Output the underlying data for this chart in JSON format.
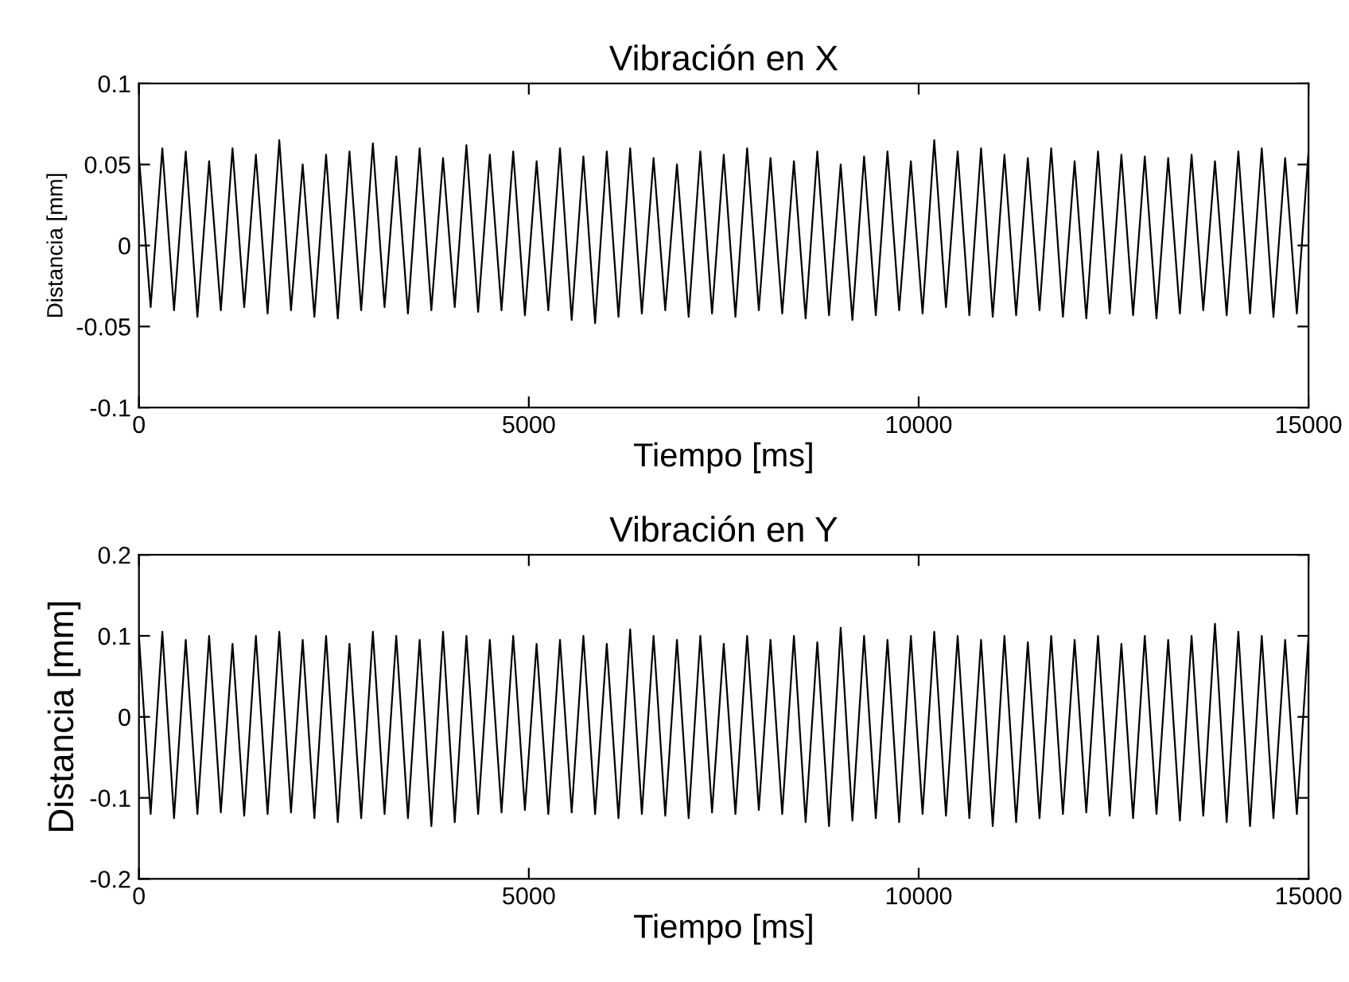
{
  "chart_data": [
    {
      "type": "line",
      "title": "Vibración en X",
      "xlabel": "Tiempo [ms]",
      "ylabel": "Distancia [mm]",
      "xlim": [
        0,
        15000
      ],
      "ylim": [
        -0.1,
        0.1
      ],
      "xticks": [
        0,
        5000,
        10000,
        15000
      ],
      "yticks": [
        -0.1,
        -0.05,
        0,
        0.05,
        0.1
      ],
      "grid": false,
      "legend": false,
      "x": [
        0,
        150,
        300,
        450,
        600,
        750,
        900,
        1050,
        1200,
        1350,
        1500,
        1650,
        1800,
        1950,
        2100,
        2250,
        2400,
        2550,
        2700,
        2850,
        3000,
        3150,
        3300,
        3450,
        3600,
        3750,
        3900,
        4050,
        4200,
        4350,
        4500,
        4650,
        4800,
        4950,
        5100,
        5250,
        5400,
        5550,
        5700,
        5850,
        6000,
        6150,
        6300,
        6450,
        6600,
        6750,
        6900,
        7050,
        7200,
        7350,
        7500,
        7650,
        7800,
        7950,
        8100,
        8250,
        8400,
        8550,
        8700,
        8850,
        9000,
        9150,
        9300,
        9450,
        9600,
        9750,
        9900,
        10050,
        10200,
        10350,
        10500,
        10650,
        10800,
        10950,
        11100,
        11250,
        11400,
        11550,
        11700,
        11850,
        12000,
        12150,
        12300,
        12450,
        12600,
        12750,
        12900,
        13050,
        13200,
        13350,
        13500,
        13650,
        13800,
        13950,
        14100,
        14250,
        14400,
        14550,
        14700,
        14850,
        15000
      ],
      "series": [
        {
          "color": "#000000",
          "values": [
            0.055,
            -0.038,
            0.06,
            -0.04,
            0.058,
            -0.044,
            0.052,
            -0.04,
            0.06,
            -0.038,
            0.056,
            -0.042,
            0.065,
            -0.04,
            0.05,
            -0.044,
            0.056,
            -0.045,
            0.058,
            -0.04,
            0.063,
            -0.038,
            0.055,
            -0.042,
            0.06,
            -0.04,
            0.054,
            -0.038,
            0.062,
            -0.041,
            0.056,
            -0.04,
            0.058,
            -0.043,
            0.052,
            -0.04,
            0.06,
            -0.046,
            0.055,
            -0.048,
            0.058,
            -0.044,
            0.06,
            -0.042,
            0.054,
            -0.04,
            0.05,
            -0.044,
            0.058,
            -0.042,
            0.056,
            -0.044,
            0.06,
            -0.04,
            0.054,
            -0.042,
            0.052,
            -0.045,
            0.058,
            -0.043,
            0.05,
            -0.046,
            0.055,
            -0.043,
            0.058,
            -0.04,
            0.052,
            -0.042,
            0.065,
            -0.038,
            0.058,
            -0.043,
            0.06,
            -0.044,
            0.056,
            -0.043,
            0.054,
            -0.04,
            0.06,
            -0.044,
            0.052,
            -0.045,
            0.058,
            -0.042,
            0.056,
            -0.043,
            0.055,
            -0.045,
            0.054,
            -0.042,
            0.056,
            -0.04,
            0.052,
            -0.043,
            0.058,
            -0.042,
            0.06,
            -0.044,
            0.054,
            -0.042,
            0.058
          ]
        }
      ]
    },
    {
      "type": "line",
      "title": "Vibración en Y",
      "xlabel": "Tiempo [ms]",
      "ylabel": "Distancia [mm]",
      "xlim": [
        0,
        15000
      ],
      "ylim": [
        -0.2,
        0.2
      ],
      "xticks": [
        0,
        5000,
        10000,
        15000
      ],
      "yticks": [
        -0.2,
        -0.1,
        0,
        0.1,
        0.2
      ],
      "grid": false,
      "legend": false,
      "x": [
        0,
        150,
        300,
        450,
        600,
        750,
        900,
        1050,
        1200,
        1350,
        1500,
        1650,
        1800,
        1950,
        2100,
        2250,
        2400,
        2550,
        2700,
        2850,
        3000,
        3150,
        3300,
        3450,
        3600,
        3750,
        3900,
        4050,
        4200,
        4350,
        4500,
        4650,
        4800,
        4950,
        5100,
        5250,
        5400,
        5550,
        5700,
        5850,
        6000,
        6150,
        6300,
        6450,
        6600,
        6750,
        6900,
        7050,
        7200,
        7350,
        7500,
        7650,
        7800,
        7950,
        8100,
        8250,
        8400,
        8550,
        8700,
        8850,
        9000,
        9150,
        9300,
        9450,
        9600,
        9750,
        9900,
        10050,
        10200,
        10350,
        10500,
        10650,
        10800,
        10950,
        11100,
        11250,
        11400,
        11550,
        11700,
        11850,
        12000,
        12150,
        12300,
        12450,
        12600,
        12750,
        12900,
        13050,
        13200,
        13350,
        13500,
        13650,
        13800,
        13950,
        14100,
        14250,
        14400,
        14550,
        14700,
        14850,
        15000
      ],
      "series": [
        {
          "color": "#000000",
          "values": [
            0.1,
            -0.12,
            0.105,
            -0.125,
            0.095,
            -0.12,
            0.1,
            -0.118,
            0.09,
            -0.122,
            0.1,
            -0.12,
            0.105,
            -0.118,
            0.095,
            -0.125,
            0.1,
            -0.13,
            0.09,
            -0.125,
            0.105,
            -0.12,
            0.1,
            -0.125,
            0.095,
            -0.135,
            0.105,
            -0.13,
            0.1,
            -0.12,
            0.095,
            -0.118,
            0.1,
            -0.115,
            0.09,
            -0.12,
            0.095,
            -0.118,
            0.1,
            -0.12,
            0.09,
            -0.125,
            0.108,
            -0.12,
            0.1,
            -0.122,
            0.095,
            -0.125,
            0.1,
            -0.118,
            0.09,
            -0.12,
            0.1,
            -0.115,
            0.095,
            -0.12,
            0.1,
            -0.13,
            0.092,
            -0.135,
            0.11,
            -0.128,
            0.1,
            -0.125,
            0.095,
            -0.13,
            0.1,
            -0.12,
            0.105,
            -0.122,
            0.1,
            -0.125,
            0.095,
            -0.135,
            0.1,
            -0.13,
            0.092,
            -0.125,
            0.1,
            -0.12,
            0.095,
            -0.118,
            0.1,
            -0.122,
            0.09,
            -0.125,
            0.1,
            -0.12,
            0.095,
            -0.128,
            0.1,
            -0.122,
            0.115,
            -0.13,
            0.105,
            -0.135,
            0.1,
            -0.125,
            0.095,
            -0.12,
            0.1
          ]
        }
      ]
    }
  ]
}
